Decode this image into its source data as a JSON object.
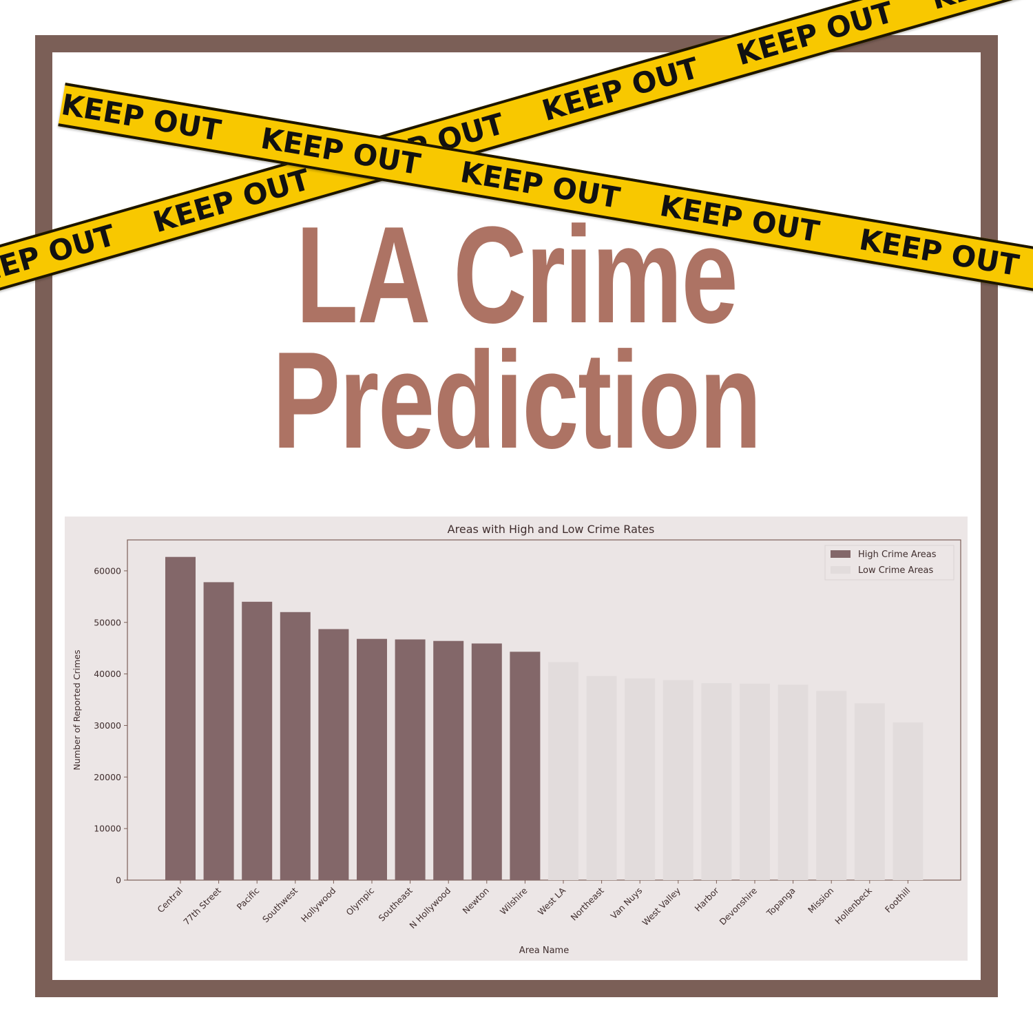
{
  "header": {
    "title_line1": "LA Crime",
    "title_line2": "Prediction"
  },
  "tape": {
    "text": "KEEP OUT",
    "color": "#f8c800"
  },
  "colors": {
    "frame": "#7b5f57",
    "title": "#ad7364",
    "high": "#836769",
    "low": "#e2dcdc"
  },
  "chart_data": {
    "type": "bar",
    "title": "Areas with High and Low Crime Rates",
    "xlabel": "Area Name",
    "ylabel": "Number of Reported Crimes",
    "ylim": [
      0,
      66000
    ],
    "yticks": [
      0,
      10000,
      20000,
      30000,
      40000,
      50000,
      60000
    ],
    "legend_position": "top-right",
    "grid": false,
    "categories": [
      "Central",
      "77th Street",
      "Pacific",
      "Southwest",
      "Hollywood",
      "Olympic",
      "Southeast",
      "N Hollywood",
      "Newton",
      "Wilshire",
      "West LA",
      "Northeast",
      "Van Nuys",
      "West Valley",
      "Harbor",
      "Devonshire",
      "Topanga",
      "Mission",
      "Hollenbeck",
      "Foothill"
    ],
    "series": [
      {
        "name": "High Crime Areas",
        "color": "#836769",
        "values": [
          62700,
          57800,
          54000,
          52000,
          48700,
          46800,
          46700,
          46400,
          45900,
          44300,
          null,
          null,
          null,
          null,
          null,
          null,
          null,
          null,
          null,
          null
        ]
      },
      {
        "name": "Low Crime Areas",
        "color": "#e2dcdc",
        "values": [
          null,
          null,
          null,
          null,
          null,
          null,
          null,
          null,
          null,
          null,
          42300,
          39600,
          39100,
          38800,
          38200,
          38100,
          37900,
          36700,
          34300,
          30600
        ]
      }
    ]
  }
}
